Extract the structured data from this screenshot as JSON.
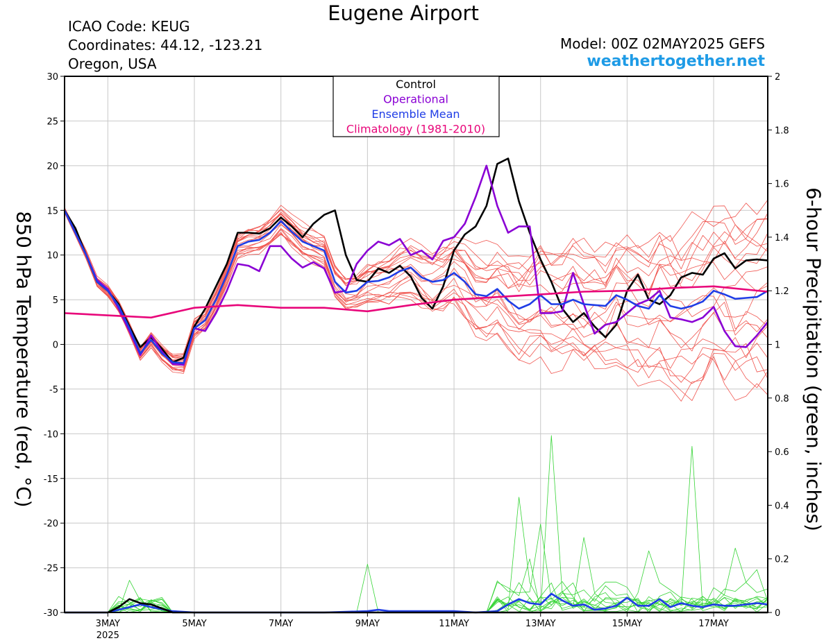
{
  "title": "Eugene Airport",
  "station": {
    "icao": "ICAO Code: KEUG",
    "coords": "Coordinates: 44.12, -123.21",
    "region": "Oregon, USA"
  },
  "model": "Model: 00Z 02MAY2025 GEFS",
  "website": "weathertogether.net",
  "colors": {
    "control": "#000000",
    "operational": "#8a00d4",
    "mean": "#1f3de6",
    "climatology": "#e8067a",
    "members_temp": "#f0554f",
    "members_precip": "#35d435",
    "website": "#1e9be6"
  },
  "chart_data": {
    "type": "line",
    "xlabel": "",
    "ylabel": "850 hPa Temperature (red, °C)",
    "y2label": "6-hour Precipitation (green, inches)",
    "x_unit": "days after 00Z 02MAY2025",
    "xlim": [
      0,
      16.25
    ],
    "ylim": [
      -30,
      30
    ],
    "y2lim": [
      0,
      2
    ],
    "x_ticks": [
      {
        "x": 1,
        "label": "3MAY",
        "sub": "2025"
      },
      {
        "x": 3,
        "label": "5MAY"
      },
      {
        "x": 5,
        "label": "7MAY"
      },
      {
        "x": 7,
        "label": "9MAY"
      },
      {
        "x": 9,
        "label": "11MAY"
      },
      {
        "x": 11,
        "label": "13MAY"
      },
      {
        "x": 13,
        "label": "15MAY"
      },
      {
        "x": 15,
        "label": "17MAY"
      }
    ],
    "y_ticks": [
      30,
      25,
      20,
      15,
      10,
      5,
      0,
      -5,
      -10,
      -15,
      -20,
      -25,
      -30
    ],
    "y2_ticks": [
      2,
      1.8,
      1.6,
      1.4,
      1.2,
      1,
      0.8,
      0.6,
      0.4,
      0.2,
      0
    ],
    "legend": [
      "Control",
      "Operational",
      "Ensemble Mean",
      "Climatology (1981-2010)"
    ],
    "legend_position": "top-center",
    "grid": true,
    "series": [
      {
        "name": "Control",
        "axis": "temp",
        "color": "#000000",
        "width": 2.6,
        "x": [
          0,
          0.25,
          0.5,
          0.75,
          1,
          1.25,
          1.5,
          1.75,
          2,
          2.25,
          2.5,
          2.75,
          3,
          3.25,
          3.5,
          3.75,
          4,
          4.25,
          4.5,
          4.75,
          5,
          5.25,
          5.5,
          5.75,
          6,
          6.25,
          6.5,
          6.75,
          7,
          7.25,
          7.5,
          7.75,
          8,
          8.25,
          8.5,
          8.75,
          9,
          9.25,
          9.5,
          9.75,
          10,
          10.25,
          10.5,
          10.75,
          11,
          11.25,
          11.5,
          11.75,
          12,
          12.25,
          12.5,
          12.75,
          13,
          13.25,
          13.5,
          13.75,
          14,
          14.25,
          14.5,
          14.75,
          15,
          15.25,
          15.5,
          15.75,
          16,
          16.25
        ],
        "y": [
          15,
          13,
          10,
          7,
          6,
          4.5,
          2,
          -0.3,
          0.8,
          -0.5,
          -2,
          -1.5,
          2,
          4,
          6.5,
          9,
          12.5,
          12.5,
          12.4,
          13,
          14.2,
          13.2,
          12,
          13.5,
          14.5,
          15,
          10,
          7.2,
          7,
          8.5,
          8,
          8.8,
          7.6,
          5.2,
          4,
          6.5,
          10.5,
          12.3,
          13.2,
          15.5,
          20.2,
          20.8,
          16,
          12.5,
          9.5,
          7,
          4,
          2.5,
          3.5,
          2,
          0.8,
          2.2,
          6,
          7.8,
          5,
          4.5,
          5.5,
          7.5,
          8,
          7.8,
          9.6,
          10.2,
          8.5,
          9.4,
          9.5,
          9.4
        ]
      },
      {
        "name": "Operational",
        "axis": "temp",
        "color": "#8a00d4",
        "width": 2.6,
        "x": [
          0,
          0.25,
          0.5,
          0.75,
          1,
          1.25,
          1.5,
          1.75,
          2,
          2.25,
          2.5,
          2.75,
          3,
          3.25,
          3.5,
          3.75,
          4,
          4.25,
          4.5,
          4.75,
          5,
          5.25,
          5.5,
          5.75,
          6,
          6.25,
          6.5,
          6.75,
          7,
          7.25,
          7.5,
          7.75,
          8,
          8.25,
          8.5,
          8.75,
          9,
          9.25,
          9.5,
          9.75,
          10,
          10.25,
          10.5,
          10.75,
          11,
          11.25,
          11.5,
          11.75,
          12,
          12.25,
          12.5,
          12.75,
          13,
          13.25,
          13.5,
          13.75,
          14,
          14.25,
          14.5,
          14.75,
          15,
          15.25,
          15.5,
          15.75,
          16,
          16.25
        ],
        "y": [
          15,
          12.5,
          10,
          7.2,
          6.2,
          4,
          1.5,
          -1.2,
          1,
          -0.8,
          -2.2,
          -2.3,
          1.8,
          1.5,
          3.5,
          6,
          9,
          8.8,
          8.2,
          11,
          11,
          9.6,
          8.6,
          9.2,
          8.5,
          5.8,
          6,
          9,
          10.5,
          11.5,
          11.1,
          11.8,
          10,
          10.5,
          9.5,
          11.6,
          12,
          13.5,
          16.5,
          20,
          15.5,
          12.5,
          13.2,
          13.2,
          3.5,
          3.5,
          3.7,
          8,
          4.5,
          1.2,
          2.2,
          2.5,
          3.5,
          4.5,
          5,
          6,
          3,
          2.8,
          2.5,
          3,
          4.2,
          1.5,
          -0.2,
          -0.3,
          1,
          2.5
        ]
      },
      {
        "name": "Ensemble Mean",
        "axis": "temp",
        "color": "#1f3de6",
        "width": 2.6,
        "x": [
          0,
          0.25,
          0.5,
          0.75,
          1,
          1.25,
          1.5,
          1.75,
          2,
          2.25,
          2.5,
          2.75,
          3,
          3.25,
          3.5,
          3.75,
          4,
          4.25,
          4.5,
          4.75,
          5,
          5.25,
          5.5,
          5.75,
          6,
          6.25,
          6.5,
          6.75,
          7,
          7.25,
          7.5,
          7.75,
          8,
          8.25,
          8.5,
          8.75,
          9,
          9.25,
          9.5,
          9.75,
          10,
          10.25,
          10.5,
          10.75,
          11,
          11.25,
          11.5,
          11.75,
          12,
          12.25,
          12.5,
          12.75,
          13,
          13.25,
          13.5,
          13.75,
          14,
          14.25,
          14.5,
          14.75,
          15,
          15.25,
          15.5,
          15.75,
          16,
          16.25
        ],
        "y": [
          15,
          12.5,
          10,
          7,
          6,
          4.3,
          1.8,
          -1,
          0.5,
          -1,
          -2,
          -2.1,
          1.8,
          2.7,
          5,
          7.8,
          11,
          11.5,
          11.7,
          12.5,
          13.8,
          12.6,
          11.5,
          11,
          10.5,
          7,
          5.8,
          6,
          7,
          7.1,
          7.5,
          8.2,
          8.6,
          7.5,
          7,
          7.2,
          8,
          7,
          5.6,
          5.4,
          6.2,
          4.9,
          4,
          4.5,
          5.5,
          4.5,
          4.5,
          5,
          4.5,
          4.4,
          4.3,
          5.5,
          5,
          4.3,
          4,
          5.5,
          4.3,
          4,
          4.3,
          4.8,
          6,
          5.6,
          5.1,
          5.2,
          5.3,
          6
        ]
      },
      {
        "name": "Climatology (1981-2010)",
        "axis": "temp",
        "color": "#e8067a",
        "width": 2.6,
        "x": [
          0,
          2,
          3,
          4,
          5,
          6,
          7,
          8,
          9,
          10,
          11,
          12,
          13,
          14,
          15,
          16.25
        ],
        "y": [
          3.5,
          3,
          4.1,
          4.4,
          4.1,
          4.1,
          3.7,
          4.4,
          5,
          5.3,
          5.6,
          5.9,
          6,
          6.3,
          6.5,
          5.9
        ]
      },
      {
        "name": "Ensemble Mean Precip",
        "axis": "precip",
        "color": "#1f3de6",
        "width": 2.6,
        "x": [
          0,
          0.5,
          1,
          1.25,
          1.5,
          1.75,
          2,
          2.5,
          3,
          4,
          5,
          6,
          7,
          7.25,
          7.5,
          8,
          9,
          9.5,
          10,
          10.25,
          10.5,
          10.75,
          11,
          11.25,
          11.5,
          11.75,
          12,
          12.25,
          12.5,
          12.75,
          13,
          13.25,
          13.5,
          13.75,
          14,
          14.25,
          14.5,
          14.75,
          15,
          15.25,
          15.5,
          16,
          16.25
        ],
        "y": [
          0,
          0,
          0,
          0.01,
          0.02,
          0.03,
          0.02,
          0.005,
          0,
          0,
          0,
          0,
          0.005,
          0.01,
          0.005,
          0.005,
          0.005,
          0,
          0.005,
          0.03,
          0.05,
          0.035,
          0.03,
          0.07,
          0.045,
          0.025,
          0.03,
          0.01,
          0.015,
          0.025,
          0.055,
          0.025,
          0.025,
          0.05,
          0.02,
          0.035,
          0.025,
          0.02,
          0.03,
          0.025,
          0.025,
          0.035,
          0.03
        ]
      },
      {
        "name": "Control Precip",
        "axis": "precip",
        "color": "#000000",
        "width": 2.6,
        "x": [
          0,
          1,
          1.25,
          1.5,
          1.75,
          2,
          2.25,
          2.5,
          3,
          9,
          16.25
        ],
        "y": [
          0,
          0,
          0.02,
          0.05,
          0.035,
          0.03,
          0.015,
          0,
          0,
          0,
          0
        ]
      }
    ],
    "members_temp": {
      "count": 20,
      "x": [
        0,
        0.25,
        0.5,
        0.75,
        1,
        1.25,
        1.5,
        1.75,
        2,
        2.25,
        2.5,
        2.75,
        3,
        3.25,
        3.5,
        3.75,
        4,
        4.25,
        4.5,
        4.75,
        5,
        5.25,
        5.5,
        5.75,
        6,
        6.25,
        6.5,
        6.75,
        7,
        7.25,
        7.5,
        7.75,
        8,
        8.25,
        8.5,
        8.75,
        9,
        9.25,
        9.5,
        9.75,
        10,
        10.25,
        10.5,
        10.75,
        11,
        11.25,
        11.5,
        11.75,
        12,
        12.25,
        12.5,
        12.75,
        13,
        13.25,
        13.5,
        13.75,
        14,
        14.25,
        14.5,
        14.75,
        15,
        15.25,
        15.5,
        15.75,
        16,
        16.25
      ],
      "mean_ref": "Ensemble Mean",
      "spread_growth": [
        0.3,
        4.5,
        9.5
      ]
    },
    "members_precip": {
      "peaks": [
        {
          "x": 1.5,
          "y": 0.12
        },
        {
          "x": 7,
          "y": 0.18
        },
        {
          "x": 10.5,
          "y": 0.43
        },
        {
          "x": 11.25,
          "y": 0.66
        },
        {
          "x": 11,
          "y": 0.33
        },
        {
          "x": 12,
          "y": 0.28
        },
        {
          "x": 13.5,
          "y": 0.23
        },
        {
          "x": 14.5,
          "y": 0.62
        },
        {
          "x": 15.5,
          "y": 0.24
        },
        {
          "x": 16,
          "y": 0.16
        },
        {
          "x": 10.75,
          "y": 0.2
        },
        {
          "x": 12.5,
          "y": 0.1
        }
      ]
    }
  }
}
